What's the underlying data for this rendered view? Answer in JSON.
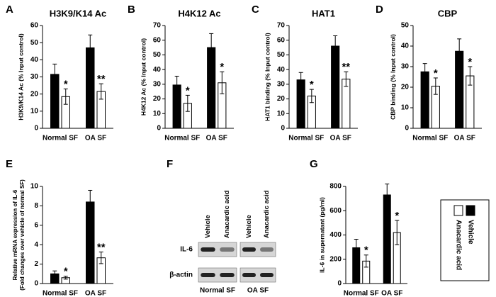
{
  "chart_data": [
    {
      "type": "bar",
      "panel": "A",
      "title": "H3K9/K14 Ac",
      "y_label": "H3K9/K14 Ac (% Input control)",
      "categories": [
        "Normal SF",
        "OA SF"
      ],
      "ylim": [
        0,
        60
      ],
      "yticks": [
        0,
        10,
        20,
        30,
        40,
        50,
        60
      ],
      "series": [
        {
          "color": "#000000",
          "values": [
            31.5,
            47
          ],
          "errors": [
            6,
            7.5
          ]
        },
        {
          "color": "#ffffff",
          "values": [
            18.5,
            21.5
          ],
          "errors": [
            4.5,
            4.5
          ],
          "annotations": [
            "*",
            "**"
          ]
        }
      ]
    },
    {
      "type": "bar",
      "panel": "B",
      "title": "H4K12 Ac",
      "y_label": "H4K12 Ac (% Input control)",
      "categories": [
        "Normal SF",
        "OA SF"
      ],
      "ylim": [
        0,
        70
      ],
      "yticks": [
        0,
        10,
        20,
        30,
        40,
        50,
        60,
        70
      ],
      "series": [
        {
          "color": "#000000",
          "values": [
            29.5,
            55
          ],
          "errors": [
            6,
            9.5
          ]
        },
        {
          "color": "#ffffff",
          "values": [
            17,
            31
          ],
          "errors": [
            5.5,
            7.5
          ],
          "annotations": [
            "*",
            "*"
          ]
        }
      ]
    },
    {
      "type": "bar",
      "panel": "C",
      "title": "HAT1",
      "y_label": "HAT1 binding (% Input control)",
      "categories": [
        "Normal SF",
        "OA SF"
      ],
      "ylim": [
        0,
        70
      ],
      "yticks": [
        0,
        10,
        20,
        30,
        40,
        50,
        60,
        70
      ],
      "series": [
        {
          "color": "#000000",
          "values": [
            33,
            56
          ],
          "errors": [
            5,
            7
          ]
        },
        {
          "color": "#ffffff",
          "values": [
            22,
            33.5
          ],
          "errors": [
            4.5,
            5
          ],
          "annotations": [
            "*",
            "**"
          ]
        }
      ]
    },
    {
      "type": "bar",
      "panel": "D",
      "title": "CBP",
      "y_label": "CBP binding (% Input control)",
      "categories": [
        "Normal SF",
        "OA SF"
      ],
      "ylim": [
        0,
        50
      ],
      "yticks": [
        0,
        10,
        20,
        30,
        40,
        50
      ],
      "series": [
        {
          "color": "#000000",
          "values": [
            27.5,
            37.5
          ],
          "errors": [
            4,
            6
          ]
        },
        {
          "color": "#ffffff",
          "values": [
            20.5,
            25.5
          ],
          "errors": [
            4,
            4.5
          ],
          "annotations": [
            "*",
            "*"
          ]
        }
      ]
    },
    {
      "type": "bar",
      "panel": "E",
      "y_label": [
        "Relative mRNA expression of IL-6",
        "(Fold changes over vehicle of normal SF)"
      ],
      "categories": [
        "Normal SF",
        "OA SF"
      ],
      "ylim": [
        0,
        10
      ],
      "yticks": [
        0,
        2,
        4,
        6,
        8,
        10
      ],
      "series": [
        {
          "color": "#000000",
          "values": [
            1,
            8.4
          ],
          "errors": [
            0.3,
            1.2
          ]
        },
        {
          "color": "#ffffff",
          "values": [
            0.6,
            2.65
          ],
          "errors": [
            0.15,
            0.6
          ],
          "annotations": [
            "*",
            "**"
          ]
        }
      ]
    },
    {
      "type": "bar",
      "panel": "G",
      "y_label": "IL-6 in supernatant (pg/ml)",
      "categories": [
        "Normal SF",
        "OA SF"
      ],
      "ylim": [
        0,
        800
      ],
      "yticks": [
        0,
        200,
        400,
        600,
        800
      ],
      "series": [
        {
          "name": "Vehicle",
          "color": "#000000",
          "values": [
            295,
            730
          ],
          "errors": [
            70,
            90
          ]
        },
        {
          "name": "Anacardic acid",
          "color": "#ffffff",
          "values": [
            185,
            420
          ],
          "errors": [
            50,
            100
          ],
          "annotations": [
            "*",
            "*"
          ]
        }
      ]
    }
  ],
  "blot": {
    "panel": "F",
    "rows": [
      "IL-6",
      "β-actin"
    ],
    "groups": [
      {
        "label": "Normal SF",
        "lanes": [
          "Vehicle",
          "Anacardic acid"
        ]
      },
      {
        "label": "OA SF",
        "lanes": [
          "Vehicle",
          "Anacardic acid"
        ]
      }
    ]
  }
}
